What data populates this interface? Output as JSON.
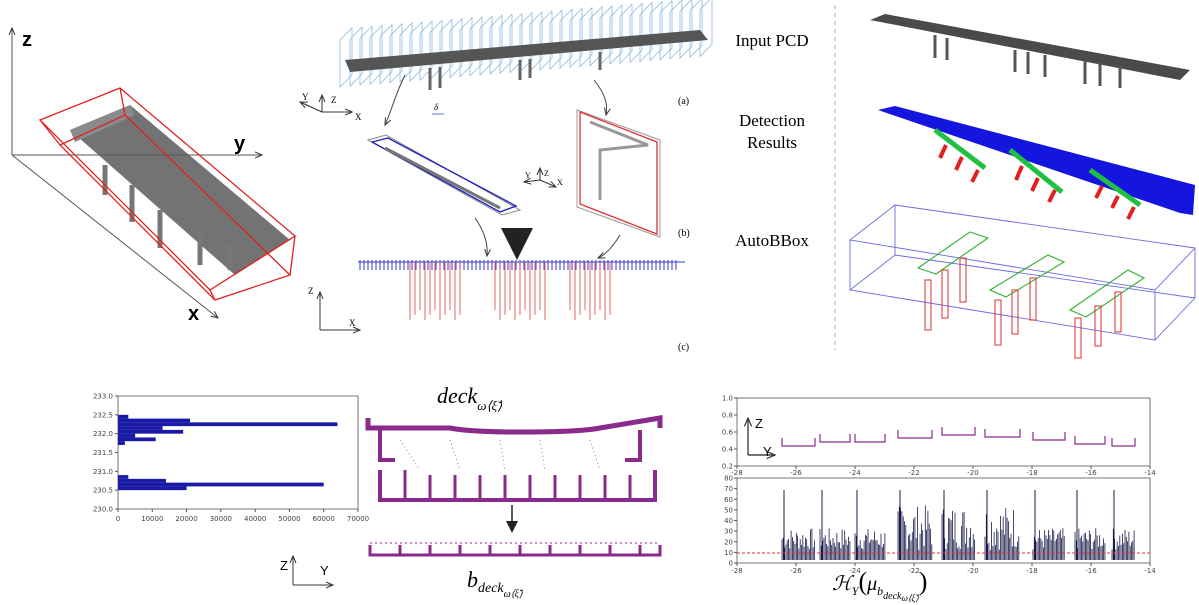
{
  "left_3d": {
    "axis_z": "z",
    "axis_y": "y",
    "axis_x": "x"
  },
  "pipeline": {
    "axes_a": {
      "y": "Y",
      "z": "Z",
      "x": "X"
    },
    "delta": "δ",
    "axes_b": {
      "y": "Y",
      "z": "Z",
      "x": "X"
    },
    "axes_c": {
      "z": "Z",
      "x": "X"
    },
    "labels": [
      "(a)",
      "(b)",
      "(c)"
    ]
  },
  "results": {
    "input": "Input PCD",
    "detection": [
      "Detection",
      "Results"
    ],
    "autobbox": "AutoBBox"
  },
  "histogram": {
    "yticks": [
      {
        "value": 233.0,
        "label": "233.0"
      },
      {
        "value": 232.5,
        "label": "232.5"
      },
      {
        "value": 232.0,
        "label": "232.0"
      },
      {
        "value": 231.5,
        "label": "231.5"
      },
      {
        "value": 231.0,
        "label": "231.0"
      },
      {
        "value": 230.5,
        "label": "230.5"
      },
      {
        "value": 230.0,
        "label": "230.0"
      }
    ],
    "xticks": [
      0,
      10000,
      20000,
      30000,
      40000,
      50000,
      60000,
      70000
    ],
    "ylim": [
      230.0,
      233.0
    ],
    "xlim": [
      0,
      70000
    ],
    "bars": {
      "y": [
        232.45,
        232.35,
        232.25,
        232.15,
        232.05,
        231.95,
        231.85,
        231.75,
        230.85,
        230.75,
        230.65,
        230.55
      ],
      "values": [
        3000,
        21000,
        64000,
        13000,
        19000,
        5000,
        11000,
        2000,
        3000,
        14000,
        60000,
        20000
      ]
    },
    "color": "#1a1aa6"
  },
  "section": {
    "axis_z": "Z",
    "axis_y": "Y",
    "top_label": {
      "base": "deck",
      "sub": "ω⟨ξ̆⟩"
    },
    "bottom_label": {
      "base": "b",
      "sub": "deck",
      "subsub": "ω⟨ξ̆⟩"
    }
  },
  "profile": {
    "axis_z": "Z",
    "axis_y": "Y",
    "top_yticks": [
      {
        "value": 0.2,
        "label": "0.2"
      },
      {
        "value": 0.4,
        "label": "0.4"
      },
      {
        "value": 0.6,
        "label": "0.6"
      },
      {
        "value": 0.8,
        "label": "0.8"
      },
      {
        "value": 1.0,
        "label": "1.0"
      }
    ],
    "top_ylim": [
      0.2,
      1.0
    ],
    "xticks": [
      -28,
      -26,
      -24,
      -22,
      -20,
      -18,
      -16,
      -14
    ],
    "xlim": [
      -28,
      -14
    ],
    "bottom_yticks": [
      0,
      10,
      20,
      30,
      40,
      50,
      60,
      70,
      80
    ],
    "bottom_ylim": [
      0,
      80
    ],
    "caption": {
      "H": "ℋ",
      "Hsub": "Y",
      "mu": "μ",
      "b": "b",
      "deck": "deck",
      "w": "ω⟨ξ̆⟩"
    }
  }
}
